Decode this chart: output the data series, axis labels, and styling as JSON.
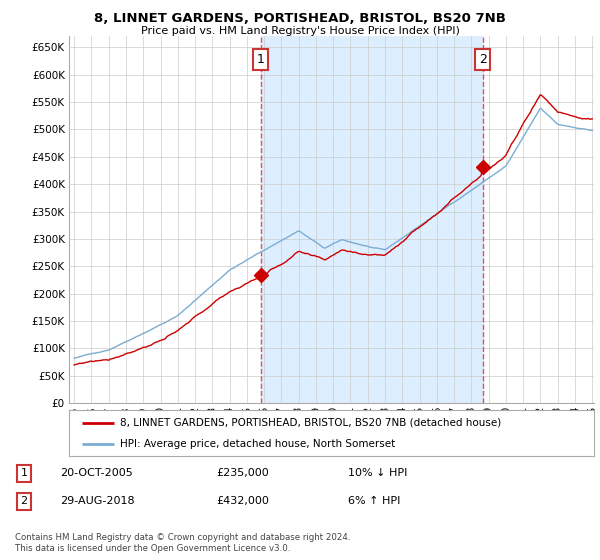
{
  "title": "8, LINNET GARDENS, PORTISHEAD, BRISTOL, BS20 7NB",
  "subtitle": "Price paid vs. HM Land Registry's House Price Index (HPI)",
  "legend_entry1": "8, LINNET GARDENS, PORTISHEAD, BRISTOL, BS20 7NB (detached house)",
  "legend_entry2": "HPI: Average price, detached house, North Somerset",
  "annotation1_label": "1",
  "annotation1_date": "20-OCT-2005",
  "annotation1_price": "£235,000",
  "annotation1_hpi": "10% ↓ HPI",
  "annotation1_year": 2005.8,
  "annotation1_value": 235000,
  "annotation2_label": "2",
  "annotation2_date": "29-AUG-2018",
  "annotation2_price": "£432,000",
  "annotation2_hpi": "6% ↑ HPI",
  "annotation2_year": 2018.66,
  "annotation2_value": 432000,
  "footer": "Contains HM Land Registry data © Crown copyright and database right 2024.\nThis data is licensed under the Open Government Licence v3.0.",
  "ylim": [
    0,
    670000
  ],
  "yticks": [
    0,
    50000,
    100000,
    150000,
    200000,
    250000,
    300000,
    350000,
    400000,
    450000,
    500000,
    550000,
    600000,
    650000
  ],
  "color_property": "#cc0000",
  "color_hpi": "#7aadd4",
  "color_shade": "#ddeeff",
  "color_vline": "#dd4444",
  "background_color": "#ffffff",
  "grid_color": "#cccccc",
  "xmin": 1995,
  "xmax": 2025
}
